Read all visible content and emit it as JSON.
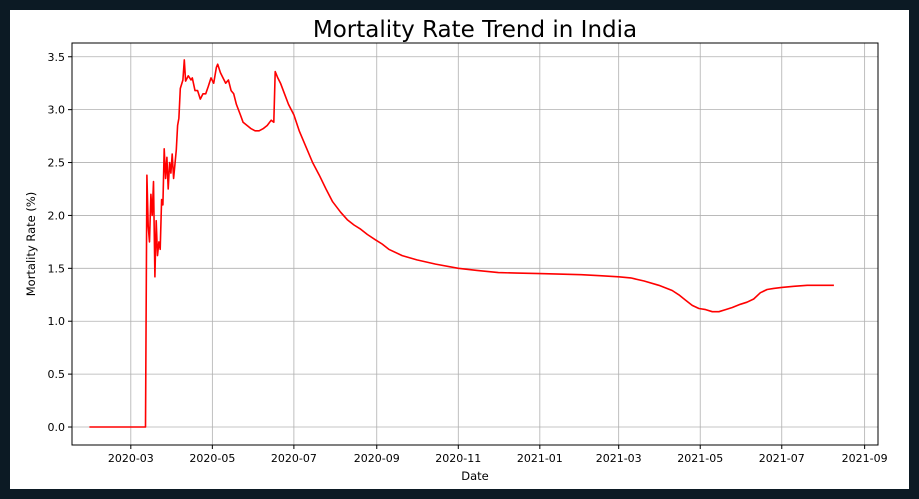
{
  "chart_data": {
    "type": "line",
    "title": "Mortality Rate Trend in India",
    "xlabel": "Date",
    "ylabel": "Mortality Rate (%)",
    "x_ticks": [
      "2020-03",
      "2020-05",
      "2020-07",
      "2020-09",
      "2020-11",
      "2021-01",
      "2021-03",
      "2021-05",
      "2021-07",
      "2021-09"
    ],
    "y_ticks": [
      "0.0",
      "0.5",
      "1.0",
      "1.5",
      "2.0",
      "2.5",
      "3.0",
      "3.5"
    ],
    "xlim": [
      "2020-01-17",
      "2021-09-11"
    ],
    "ylim": [
      -0.17,
      3.63
    ],
    "grid": true,
    "line_color": "#ff0000",
    "series": [
      {
        "points": [
          [
            "2020-01-30",
            0.0
          ],
          [
            "2020-03-12",
            0.0
          ],
          [
            "2020-03-13",
            2.38
          ],
          [
            "2020-03-14",
            1.9
          ],
          [
            "2020-03-15",
            1.75
          ],
          [
            "2020-03-16",
            2.2
          ],
          [
            "2020-03-17",
            2.0
          ],
          [
            "2020-03-18",
            2.32
          ],
          [
            "2020-03-19",
            1.42
          ],
          [
            "2020-03-20",
            1.95
          ],
          [
            "2020-03-21",
            1.62
          ],
          [
            "2020-03-22",
            1.75
          ],
          [
            "2020-03-23",
            1.68
          ],
          [
            "2020-03-24",
            2.15
          ],
          [
            "2020-03-25",
            2.1
          ],
          [
            "2020-03-26",
            2.63
          ],
          [
            "2020-03-27",
            2.35
          ],
          [
            "2020-03-28",
            2.55
          ],
          [
            "2020-03-29",
            2.25
          ],
          [
            "2020-03-30",
            2.5
          ],
          [
            "2020-03-31",
            2.4
          ],
          [
            "2020-04-01",
            2.58
          ],
          [
            "2020-04-02",
            2.35
          ],
          [
            "2020-04-03",
            2.48
          ],
          [
            "2020-04-04",
            2.62
          ],
          [
            "2020-04-05",
            2.85
          ],
          [
            "2020-04-06",
            2.92
          ],
          [
            "2020-04-07",
            3.2
          ],
          [
            "2020-04-09",
            3.28
          ],
          [
            "2020-04-10",
            3.47
          ],
          [
            "2020-04-11",
            3.27
          ],
          [
            "2020-04-13",
            3.32
          ],
          [
            "2020-04-15",
            3.28
          ],
          [
            "2020-04-16",
            3.3
          ],
          [
            "2020-04-18",
            3.18
          ],
          [
            "2020-04-20",
            3.18
          ],
          [
            "2020-04-22",
            3.1
          ],
          [
            "2020-04-24",
            3.15
          ],
          [
            "2020-04-26",
            3.15
          ],
          [
            "2020-04-28",
            3.22
          ],
          [
            "2020-04-30",
            3.3
          ],
          [
            "2020-05-02",
            3.25
          ],
          [
            "2020-05-04",
            3.4
          ],
          [
            "2020-05-05",
            3.43
          ],
          [
            "2020-05-07",
            3.35
          ],
          [
            "2020-05-09",
            3.3
          ],
          [
            "2020-05-11",
            3.25
          ],
          [
            "2020-05-13",
            3.28
          ],
          [
            "2020-05-15",
            3.18
          ],
          [
            "2020-05-17",
            3.15
          ],
          [
            "2020-05-19",
            3.05
          ],
          [
            "2020-05-22",
            2.95
          ],
          [
            "2020-05-24",
            2.88
          ],
          [
            "2020-05-27",
            2.85
          ],
          [
            "2020-05-30",
            2.82
          ],
          [
            "2020-06-02",
            2.8
          ],
          [
            "2020-06-05",
            2.8
          ],
          [
            "2020-06-08",
            2.82
          ],
          [
            "2020-06-11",
            2.85
          ],
          [
            "2020-06-14",
            2.9
          ],
          [
            "2020-06-16",
            2.88
          ],
          [
            "2020-06-17",
            3.36
          ],
          [
            "2020-06-19",
            3.3
          ],
          [
            "2020-06-21",
            3.25
          ],
          [
            "2020-06-24",
            3.15
          ],
          [
            "2020-06-27",
            3.05
          ],
          [
            "2020-07-01",
            2.95
          ],
          [
            "2020-07-05",
            2.8
          ],
          [
            "2020-07-10",
            2.65
          ],
          [
            "2020-07-15",
            2.5
          ],
          [
            "2020-07-20",
            2.38
          ],
          [
            "2020-07-25",
            2.25
          ],
          [
            "2020-07-30",
            2.13
          ],
          [
            "2020-08-05",
            2.03
          ],
          [
            "2020-08-10",
            1.96
          ],
          [
            "2020-08-15",
            1.91
          ],
          [
            "2020-08-20",
            1.87
          ],
          [
            "2020-08-25",
            1.82
          ],
          [
            "2020-08-31",
            1.77
          ],
          [
            "2020-09-05",
            1.73
          ],
          [
            "2020-09-10",
            1.68
          ],
          [
            "2020-09-20",
            1.62
          ],
          [
            "2020-10-01",
            1.58
          ],
          [
            "2020-10-15",
            1.54
          ],
          [
            "2020-11-01",
            1.5
          ],
          [
            "2020-11-15",
            1.48
          ],
          [
            "2020-12-01",
            1.46
          ],
          [
            "2020-12-15",
            1.455
          ],
          [
            "2021-01-01",
            1.45
          ],
          [
            "2021-01-15",
            1.445
          ],
          [
            "2021-02-01",
            1.44
          ],
          [
            "2021-02-15",
            1.43
          ],
          [
            "2021-03-01",
            1.42
          ],
          [
            "2021-03-10",
            1.41
          ],
          [
            "2021-03-20",
            1.38
          ],
          [
            "2021-03-31",
            1.34
          ],
          [
            "2021-04-10",
            1.29
          ],
          [
            "2021-04-15",
            1.25
          ],
          [
            "2021-04-20",
            1.2
          ],
          [
            "2021-04-25",
            1.15
          ],
          [
            "2021-04-30",
            1.12
          ],
          [
            "2021-05-05",
            1.11
          ],
          [
            "2021-05-10",
            1.09
          ],
          [
            "2021-05-15",
            1.09
          ],
          [
            "2021-05-20",
            1.11
          ],
          [
            "2021-05-25",
            1.13
          ],
          [
            "2021-05-31",
            1.16
          ],
          [
            "2021-06-05",
            1.18
          ],
          [
            "2021-06-10",
            1.21
          ],
          [
            "2021-06-15",
            1.27
          ],
          [
            "2021-06-20",
            1.3
          ],
          [
            "2021-06-25",
            1.31
          ],
          [
            "2021-07-01",
            1.32
          ],
          [
            "2021-07-10",
            1.33
          ],
          [
            "2021-07-15",
            1.335
          ],
          [
            "2021-07-20",
            1.34
          ],
          [
            "2021-07-25",
            1.34
          ],
          [
            "2021-08-01",
            1.34
          ],
          [
            "2021-08-09",
            1.34
          ]
        ]
      }
    ]
  }
}
